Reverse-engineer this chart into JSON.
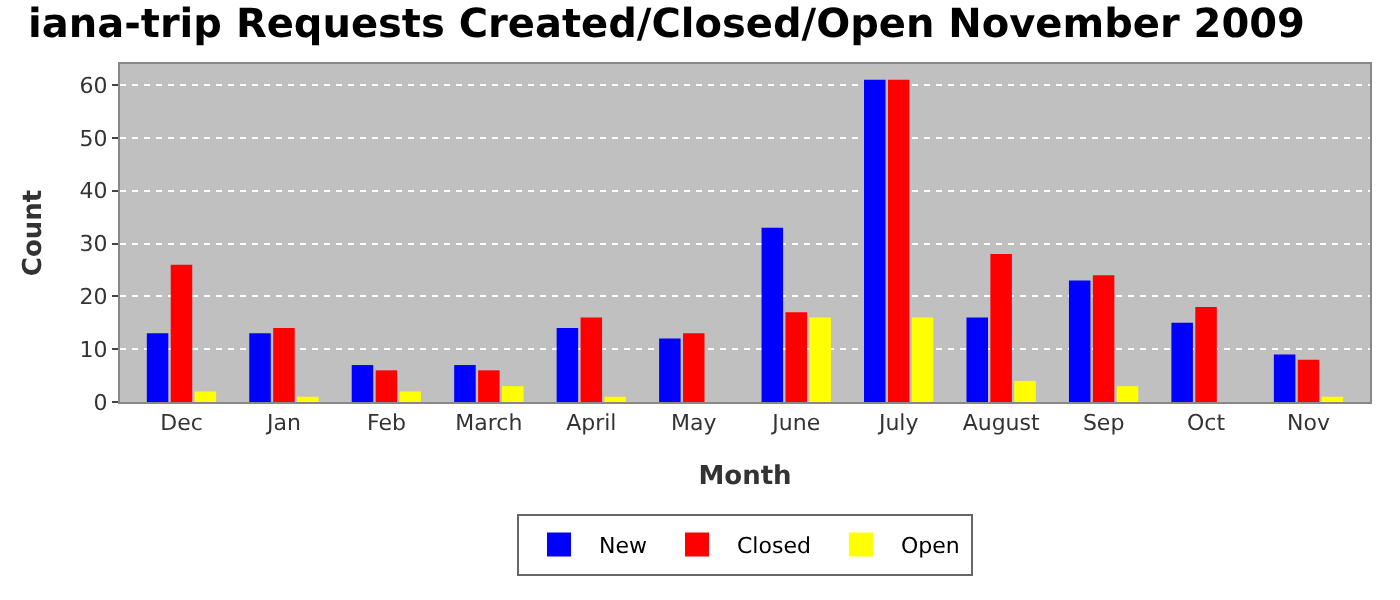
{
  "chart_data": {
    "type": "bar",
    "title": "iana-trip Requests Created/Closed/Open November 2009",
    "xlabel": "Month",
    "ylabel": "Count",
    "categories": [
      "Dec",
      "Jan",
      "Feb",
      "March",
      "April",
      "May",
      "June",
      "July",
      "August",
      "Sep",
      "Oct",
      "Nov"
    ],
    "series": [
      {
        "name": "New",
        "color": "#0000ff",
        "values": [
          13,
          13,
          7,
          7,
          14,
          12,
          33,
          61,
          16,
          23,
          15,
          9
        ]
      },
      {
        "name": "Closed",
        "color": "#ff0000",
        "values": [
          26,
          14,
          6,
          6,
          16,
          13,
          17,
          61,
          28,
          24,
          18,
          8
        ]
      },
      {
        "name": "Open",
        "color": "#ffff00",
        "values": [
          2,
          1,
          2,
          3,
          1,
          0,
          16,
          16,
          4,
          3,
          0,
          1
        ]
      }
    ],
    "ylim": [
      0,
      64
    ],
    "yticks": [
      0,
      10,
      20,
      30,
      40,
      50,
      60
    ],
    "grid": "y",
    "legend": "bottom"
  }
}
